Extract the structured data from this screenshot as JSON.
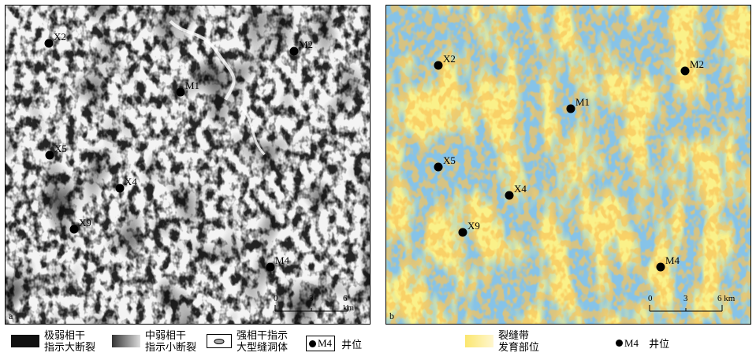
{
  "panel_a": {
    "letter": "a",
    "wells": [
      {
        "name": "X2"
      },
      {
        "name": "M2"
      },
      {
        "name": "M1"
      },
      {
        "name": "X5"
      },
      {
        "name": "X4"
      },
      {
        "name": "X9"
      },
      {
        "name": "M4"
      }
    ],
    "scale": {
      "t0": "0",
      "t1": "3",
      "t2": "6 km"
    }
  },
  "panel_b": {
    "letter": "b",
    "wells": [
      {
        "name": "X2"
      },
      {
        "name": "M2"
      },
      {
        "name": "M1"
      },
      {
        "name": "X5"
      },
      {
        "name": "X4"
      },
      {
        "name": "X9"
      },
      {
        "name": "M4"
      }
    ],
    "scale": {
      "t0": "0",
      "t1": "3",
      "t2": "6 km"
    }
  },
  "legend": {
    "very_weak": {
      "line1": "极弱相干",
      "line2": "指示大断裂"
    },
    "medium_weak": {
      "line1": "中弱相干",
      "line2": "指示小断裂"
    },
    "strong": {
      "line1": "强相干指示",
      "line2": "大型缝洞体"
    },
    "well_box": "M4",
    "well_text": "井位",
    "fracture": {
      "line1": "裂缝带",
      "line2": "发育部位"
    },
    "well_box_b": "M4",
    "well_text_b": "井位"
  },
  "colors": {
    "fracture_yellow": "#f5e34a",
    "background_blue": "#86c3e8",
    "very_weak": "#111111"
  }
}
